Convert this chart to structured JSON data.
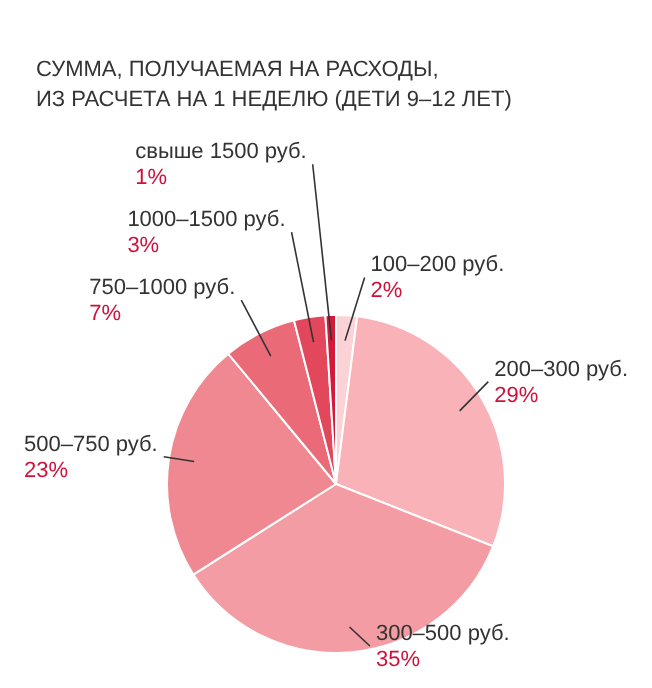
{
  "chart_data": {
    "type": "pie",
    "title": "СУММА, ПОЛУЧАЕМАЯ НА РАСХОДЫ,\nИЗ РАСЧЕТА НА 1 НЕДЕЛЮ (ДЕТИ 9–12 ЛЕТ)",
    "categories": [
      "100–200 руб.",
      "200–300 руб.",
      "300–500 руб.",
      "500–750 руб.",
      "750–1000 руб.",
      "1000–1500 руб.",
      "свыше 1500 руб."
    ],
    "values": [
      2,
      29,
      35,
      23,
      7,
      3,
      1
    ],
    "colors": [
      "#fbd3d6",
      "#f8b2b8",
      "#f49ca4",
      "#ef8891",
      "#ea6b77",
      "#e2475c",
      "#d6193a"
    ],
    "value_labels": [
      "2%",
      "29%",
      "35%",
      "23%",
      "7%",
      "3%",
      "1%"
    ],
    "legend": false
  }
}
